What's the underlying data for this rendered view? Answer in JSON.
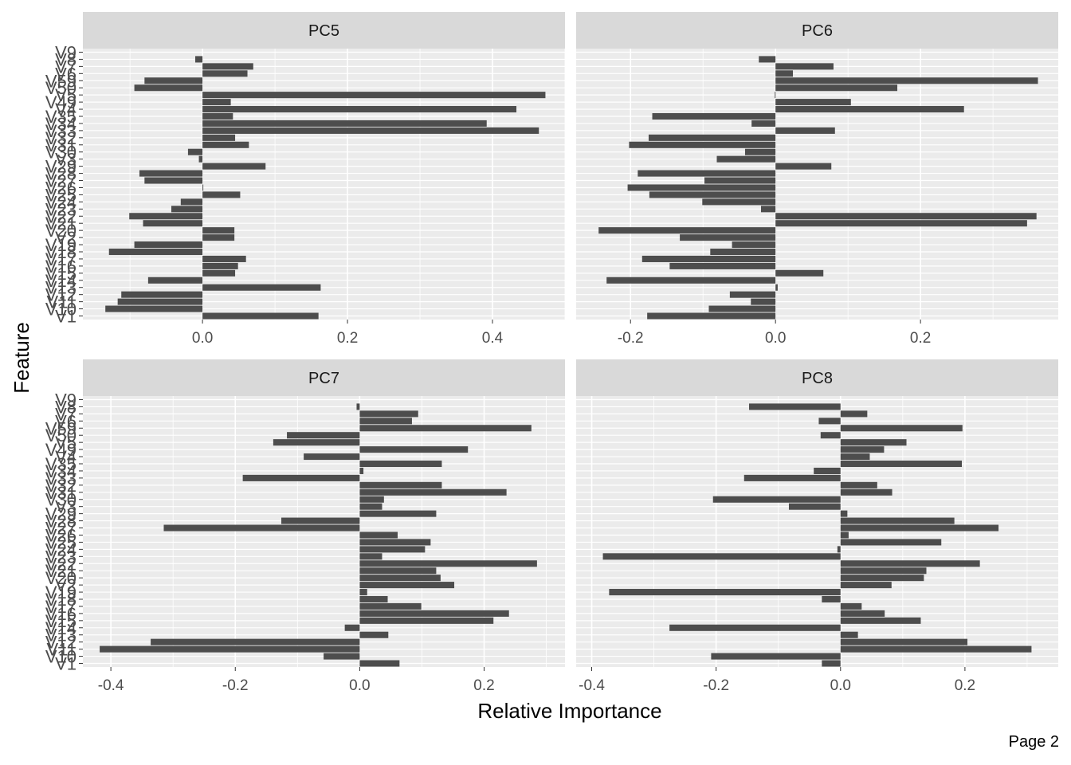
{
  "page_label": "Page 2",
  "colors": {
    "bar": "#4d4d4d",
    "panel_bg": "#ebebeb",
    "strip_bg": "#d9d9d9",
    "grid": "#ffffff"
  },
  "chart_data": {
    "type": "bar",
    "orientation": "horizontal",
    "facets": [
      "PC5",
      "PC6",
      "PC7",
      "PC8"
    ],
    "xlabel": "Relative Importance",
    "ylabel": "Feature",
    "categories": [
      "V1",
      "V10",
      "V11",
      "V12",
      "V13",
      "V14",
      "V15",
      "V16",
      "V17",
      "V18",
      "V19",
      "V2",
      "V20",
      "V21",
      "V22",
      "V23",
      "V24",
      "V25",
      "V26",
      "V27",
      "V28",
      "V29",
      "V3",
      "V30",
      "V31",
      "V32",
      "V33",
      "V34",
      "V35",
      "V4",
      "V49",
      "V5",
      "V50",
      "V59",
      "V6",
      "V7",
      "V8",
      "V9"
    ],
    "panels": [
      {
        "name": "PC5",
        "xlim": [
          -0.165,
          0.5
        ],
        "xticks": [
          "0.0",
          "0.2",
          "0.4"
        ],
        "xtick_values": [
          0,
          0.2,
          0.4
        ],
        "values": [
          0.16,
          -0.134,
          -0.117,
          -0.112,
          0.163,
          -0.075,
          0.045,
          0.049,
          0.06,
          -0.129,
          -0.094,
          0.044,
          0.044,
          -0.082,
          -0.101,
          -0.043,
          -0.03,
          0.052,
          0.001,
          -0.08,
          -0.087,
          0.087,
          -0.005,
          -0.02,
          0.064,
          0.045,
          0.464,
          0.392,
          0.042,
          0.433,
          0.039,
          0.473,
          -0.094,
          -0.08,
          0.062,
          0.07,
          -0.01,
          0.0
        ]
      },
      {
        "name": "PC6",
        "xlim": [
          -0.275,
          0.39
        ],
        "xticks": [
          "-0.2",
          "0.0",
          "0.2"
        ],
        "xtick_values": [
          -0.2,
          0,
          0.2
        ],
        "values": [
          -0.177,
          -0.092,
          -0.034,
          -0.063,
          0.003,
          -0.233,
          0.066,
          -0.146,
          -0.184,
          -0.09,
          -0.06,
          -0.132,
          -0.244,
          0.347,
          0.36,
          -0.02,
          -0.101,
          -0.174,
          -0.204,
          -0.098,
          -0.19,
          0.077,
          -0.081,
          -0.042,
          -0.202,
          -0.175,
          0.082,
          -0.033,
          -0.17,
          0.26,
          0.104,
          -0.001,
          0.168,
          0.362,
          0.024,
          0.08,
          -0.023,
          0.0
        ]
      },
      {
        "name": "PC7",
        "xlim": [
          -0.445,
          0.33
        ],
        "xticks": [
          "-0.4",
          "-0.2",
          "0.0",
          "0.2"
        ],
        "xtick_values": [
          -0.4,
          -0.2,
          0,
          0.2
        ],
        "values": [
          0.064,
          -0.058,
          -0.418,
          -0.336,
          0.046,
          -0.024,
          0.215,
          0.24,
          0.099,
          0.045,
          0.012,
          0.152,
          0.13,
          0.123,
          0.285,
          0.036,
          0.105,
          0.114,
          0.061,
          -0.315,
          -0.126,
          0.123,
          0.036,
          0.039,
          0.236,
          0.132,
          -0.188,
          0.006,
          0.132,
          -0.09,
          0.174,
          -0.139,
          -0.117,
          0.276,
          0.084,
          0.094,
          -0.005,
          0.0
        ]
      },
      {
        "name": "PC8",
        "xlim": [
          -0.425,
          0.35
        ],
        "xticks": [
          "-0.4",
          "-0.2",
          "0.0",
          "0.2"
        ],
        "xtick_values": [
          -0.4,
          -0.2,
          0,
          0.2
        ],
        "values": [
          -0.03,
          -0.208,
          0.307,
          0.204,
          0.028,
          -0.275,
          0.129,
          0.071,
          0.034,
          -0.03,
          -0.372,
          0.082,
          0.134,
          0.138,
          0.224,
          -0.382,
          -0.005,
          0.162,
          0.013,
          0.254,
          0.183,
          0.011,
          -0.083,
          -0.205,
          0.083,
          0.059,
          -0.155,
          -0.043,
          0.195,
          0.047,
          0.07,
          0.106,
          -0.032,
          0.196,
          -0.035,
          0.043,
          -0.147,
          0.0
        ]
      }
    ]
  }
}
